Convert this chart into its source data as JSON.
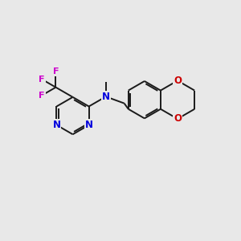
{
  "bg_color": "#e8e8e8",
  "bond_color": "#1a1a1a",
  "N_color": "#0000dd",
  "O_color": "#cc0000",
  "F_color": "#cc00cc",
  "lw": 1.4,
  "fs": 8.5,
  "fig_w": 3.0,
  "fig_h": 3.0,
  "dpi": 100,
  "xlim": [
    0,
    10
  ],
  "ylim": [
    0,
    10
  ]
}
